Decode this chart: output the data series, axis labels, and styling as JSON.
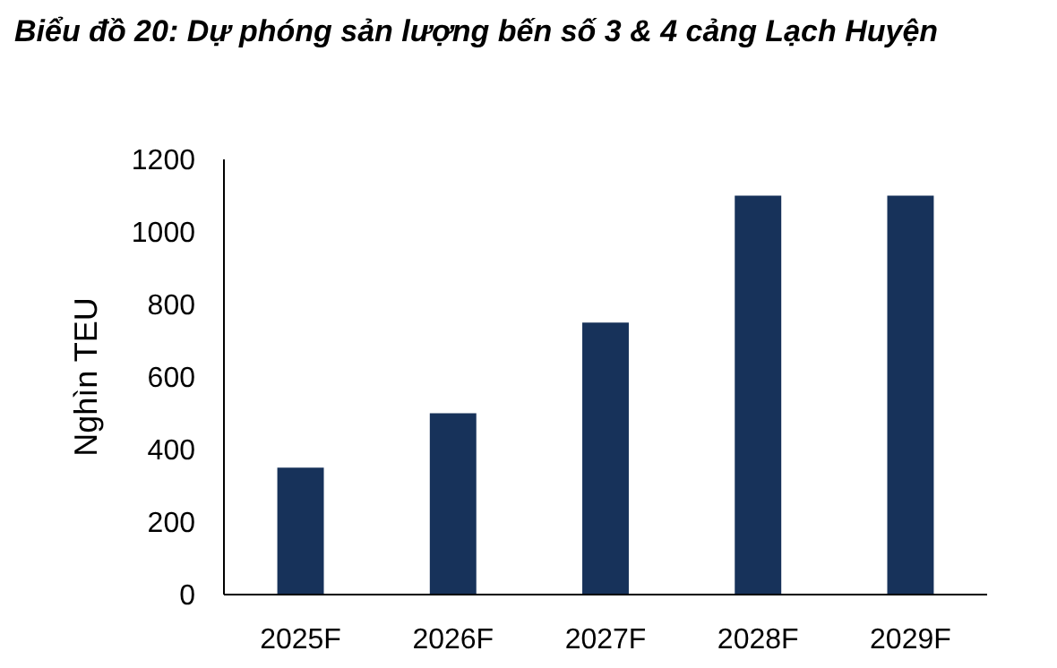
{
  "chart_data": {
    "type": "bar",
    "title": "Biểu đồ 20: Dự phóng sản lượng bến số 3 & 4 cảng Lạch Huyện",
    "ylabel": "Nghìn TEU",
    "categories": [
      "2025F",
      "2026F",
      "2027F",
      "2028F",
      "2029F"
    ],
    "values": [
      350,
      500,
      750,
      1100,
      1100
    ],
    "color": "#17325a",
    "ylim": [
      0,
      1200
    ],
    "yticks": [
      0,
      200,
      400,
      600,
      800,
      1000,
      1200
    ],
    "grid": false
  }
}
